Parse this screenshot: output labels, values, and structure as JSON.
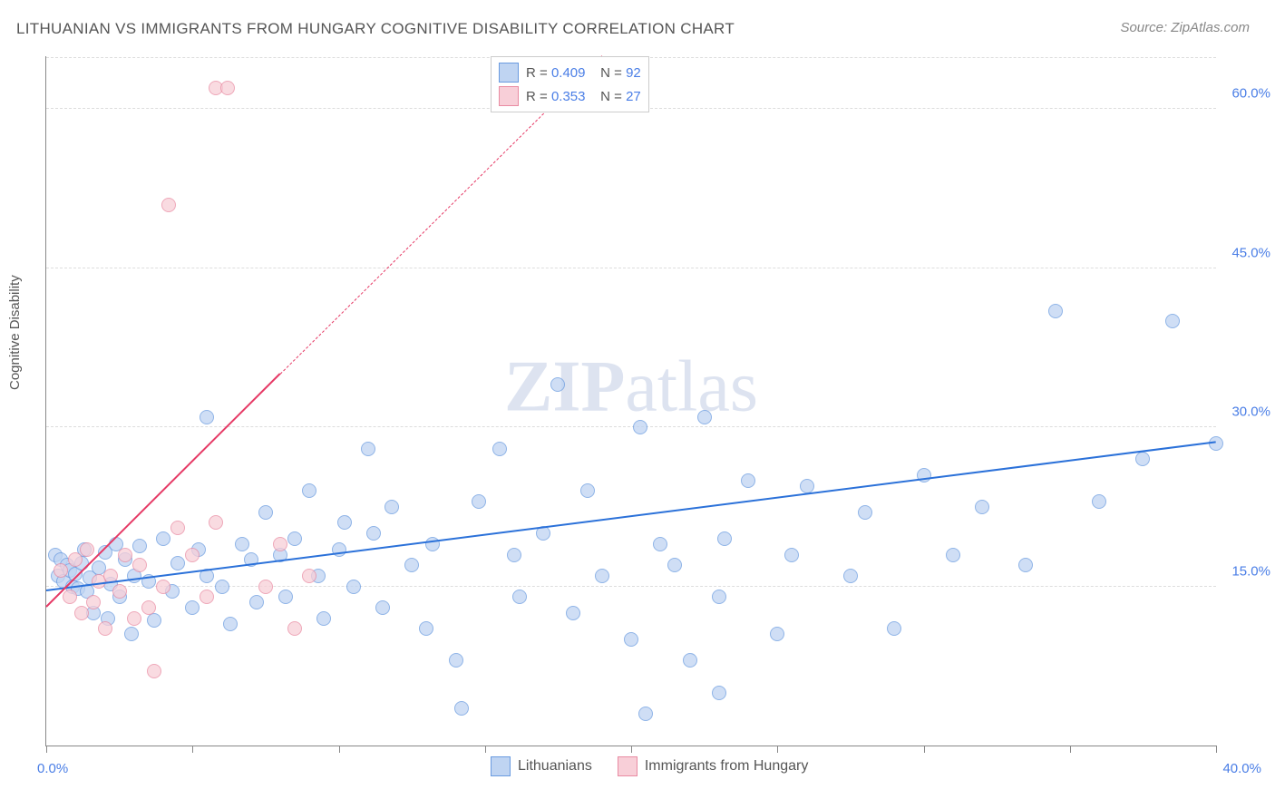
{
  "title": "LITHUANIAN VS IMMIGRANTS FROM HUNGARY COGNITIVE DISABILITY CORRELATION CHART",
  "source": "Source: ZipAtlas.com",
  "y_axis_label": "Cognitive Disability",
  "watermark": {
    "zip": "ZIP",
    "atlas": "atlas"
  },
  "chart": {
    "type": "scatter",
    "background_color": "#ffffff",
    "grid_color": "#dddddd",
    "axis_color": "#888888",
    "xlim": [
      0,
      40
    ],
    "ylim": [
      0,
      65
    ],
    "x_ticks": [
      0,
      5,
      10,
      15,
      20,
      25,
      30,
      35,
      40
    ],
    "x_tick_labels": {
      "0": "0.0%",
      "40": "40.0%"
    },
    "y_gridlines": [
      15,
      30,
      45,
      60
    ],
    "y_tick_labels": {
      "15": "15.0%",
      "30": "30.0%",
      "45": "45.0%",
      "60": "60.0%"
    },
    "tick_label_color": "#4a7ee6",
    "axis_label_color": "#555555",
    "title_color": "#555555",
    "title_fontsize": 17,
    "label_fontsize": 15
  },
  "series": [
    {
      "name": "Lithuanians",
      "marker_fill": "#bfd4f2",
      "marker_stroke": "#6a9be0",
      "marker_size": 14,
      "marker_opacity": 0.75,
      "line_color": "#2b71d9",
      "line_width": 2.5,
      "line_dash": "solid",
      "r_label": "R =",
      "r_value": "0.409",
      "n_label": "N =",
      "n_value": "92",
      "trend": {
        "x1": 0,
        "y1": 14.5,
        "x2": 40,
        "y2": 28.5
      },
      "points": [
        [
          0.3,
          18
        ],
        [
          0.4,
          16
        ],
        [
          0.5,
          17.5
        ],
        [
          0.6,
          15.5
        ],
        [
          0.7,
          17
        ],
        [
          0.8,
          16.5
        ],
        [
          0.9,
          15
        ],
        [
          1.0,
          16.2
        ],
        [
          1.1,
          14.8
        ],
        [
          1.2,
          17.2
        ],
        [
          1.3,
          18.5
        ],
        [
          1.4,
          14.5
        ],
        [
          1.5,
          15.8
        ],
        [
          1.6,
          12.5
        ],
        [
          1.8,
          16.8
        ],
        [
          2.0,
          18.2
        ],
        [
          2.1,
          12.0
        ],
        [
          2.2,
          15.2
        ],
        [
          2.4,
          19.0
        ],
        [
          2.5,
          14.0
        ],
        [
          2.7,
          17.5
        ],
        [
          2.9,
          10.5
        ],
        [
          3.0,
          16.0
        ],
        [
          3.2,
          18.8
        ],
        [
          3.5,
          15.5
        ],
        [
          3.7,
          11.8
        ],
        [
          4.0,
          19.5
        ],
        [
          4.3,
          14.5
        ],
        [
          4.5,
          17.2
        ],
        [
          5.0,
          13.0
        ],
        [
          5.2,
          18.5
        ],
        [
          5.5,
          31.0
        ],
        [
          5.5,
          16.0
        ],
        [
          6.0,
          15.0
        ],
        [
          6.3,
          11.5
        ],
        [
          6.7,
          19
        ],
        [
          7.0,
          17.5
        ],
        [
          7.2,
          13.5
        ],
        [
          7.5,
          22
        ],
        [
          8.0,
          18
        ],
        [
          8.2,
          14
        ],
        [
          8.5,
          19.5
        ],
        [
          9.0,
          24
        ],
        [
          9.3,
          16
        ],
        [
          9.5,
          12
        ],
        [
          10.0,
          18.5
        ],
        [
          10.2,
          21
        ],
        [
          10.5,
          15
        ],
        [
          11.0,
          28
        ],
        [
          11.2,
          20
        ],
        [
          11.5,
          13
        ],
        [
          11.8,
          22.5
        ],
        [
          12.5,
          17
        ],
        [
          13.0,
          11
        ],
        [
          13.2,
          19
        ],
        [
          14.0,
          8
        ],
        [
          14.2,
          3.5
        ],
        [
          14.8,
          23
        ],
        [
          15.5,
          28
        ],
        [
          16.0,
          18
        ],
        [
          16.2,
          14
        ],
        [
          17.0,
          20
        ],
        [
          17.5,
          34
        ],
        [
          18.0,
          12.5
        ],
        [
          18.5,
          24
        ],
        [
          19.0,
          16
        ],
        [
          20.0,
          10
        ],
        [
          20.3,
          30
        ],
        [
          20.5,
          3
        ],
        [
          21.0,
          19
        ],
        [
          21.5,
          17
        ],
        [
          22.0,
          8
        ],
        [
          22.5,
          31
        ],
        [
          23.0,
          14
        ],
        [
          23.0,
          5
        ],
        [
          23.2,
          19.5
        ],
        [
          24.0,
          25
        ],
        [
          25.0,
          10.5
        ],
        [
          25.5,
          18
        ],
        [
          26.0,
          24.5
        ],
        [
          27.5,
          16
        ],
        [
          28.0,
          22
        ],
        [
          29.0,
          11
        ],
        [
          30.0,
          25.5
        ],
        [
          31.0,
          18
        ],
        [
          32.0,
          22.5
        ],
        [
          33.5,
          17
        ],
        [
          34.5,
          41
        ],
        [
          36.0,
          23
        ],
        [
          37.5,
          27
        ],
        [
          38.5,
          40
        ],
        [
          40,
          28.5
        ]
      ]
    },
    {
      "name": "Immigrants from Hungary",
      "marker_fill": "#f8cfd8",
      "marker_stroke": "#e98ba2",
      "marker_size": 14,
      "marker_opacity": 0.75,
      "line_color": "#e63965",
      "line_width": 2,
      "line_dash_solid_until": 8,
      "r_label": "R =",
      "r_value": "0.353",
      "n_label": "N =",
      "n_value": "27",
      "trend_solid": {
        "x1": 0,
        "y1": 13,
        "x2": 8,
        "y2": 35
      },
      "trend_dashed": {
        "x1": 8,
        "y1": 35,
        "x2": 19,
        "y2": 65
      },
      "points": [
        [
          0.5,
          16.5
        ],
        [
          0.8,
          14
        ],
        [
          1.0,
          17.5
        ],
        [
          1.2,
          12.5
        ],
        [
          1.4,
          18.5
        ],
        [
          1.6,
          13.5
        ],
        [
          1.8,
          15.5
        ],
        [
          2.0,
          11
        ],
        [
          2.2,
          16
        ],
        [
          2.5,
          14.5
        ],
        [
          2.7,
          18
        ],
        [
          3.0,
          12
        ],
        [
          3.2,
          17
        ],
        [
          3.5,
          13
        ],
        [
          3.7,
          7
        ],
        [
          4.0,
          15
        ],
        [
          4.2,
          51
        ],
        [
          4.5,
          20.5
        ],
        [
          5.0,
          18
        ],
        [
          5.5,
          14
        ],
        [
          5.8,
          21
        ],
        [
          5.8,
          62
        ],
        [
          6.2,
          62
        ],
        [
          7.5,
          15
        ],
        [
          8.0,
          19
        ],
        [
          8.5,
          11
        ],
        [
          9.0,
          16
        ]
      ]
    }
  ]
}
